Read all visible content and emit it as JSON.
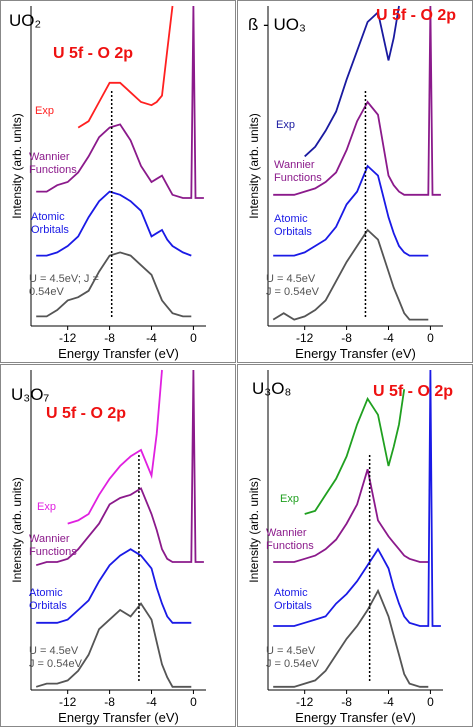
{
  "chart_data": [
    {
      "type": "line",
      "title": "UO₂",
      "annotation": "U 5f - O 2p",
      "x_label": "Energy Transfer (eV)",
      "y_label": "Intensity (arb. units)",
      "xlim": [
        -15.5,
        1.2
      ],
      "ylim": [
        0,
        10
      ],
      "xticks": [
        -12,
        -8,
        -4,
        0
      ],
      "marker_x": -7.8,
      "x": [
        -15,
        -14,
        -13,
        -12,
        -11,
        -10,
        -9,
        -8,
        -7,
        -6,
        -5,
        -4,
        -3.5,
        -3,
        -2.5,
        -2,
        -1,
        -0.2,
        0,
        0.2,
        1
      ],
      "series": [
        {
          "name": "Exp",
          "color": "#ff2020",
          "values": [
            null,
            null,
            null,
            null,
            6.2,
            6.4,
            7.0,
            7.6,
            7.6,
            7.3,
            7.0,
            6.9,
            7.0,
            7.2,
            8.6,
            10,
            null,
            null,
            null,
            null,
            null
          ]
        },
        {
          "name": "Wannier Functions",
          "color": "#8b1a8b",
          "values": [
            4.2,
            4.2,
            4.4,
            4.5,
            4.8,
            5.3,
            5.9,
            6.2,
            6.3,
            5.8,
            5.0,
            4.5,
            4.6,
            4.7,
            4.4,
            4.1,
            4.0,
            4.0,
            10,
            4.0,
            4.0
          ]
        },
        {
          "name": "Atomic Orbitals",
          "color": "#1a1ae6",
          "values": [
            2.2,
            2.2,
            2.3,
            2.5,
            2.8,
            3.4,
            3.9,
            4.2,
            4.1,
            3.9,
            3.6,
            2.8,
            2.9,
            3.0,
            2.7,
            2.5,
            2.3,
            2.2,
            null,
            null,
            null
          ]
        },
        {
          "name": "U = 4.5eV; J = 0.54eV",
          "color": "#555555",
          "values": [
            0.3,
            0.3,
            0.5,
            0.8,
            0.9,
            1.1,
            1.7,
            2.2,
            2.3,
            2.2,
            1.9,
            1.6,
            1.2,
            0.8,
            0.6,
            0.4,
            0.3,
            0.3,
            null,
            null,
            null
          ]
        }
      ]
    },
    {
      "type": "line",
      "title": "ß - UO₃",
      "annotation": "U 5f - O 2p",
      "x_label": "Energy Transfer (eV)",
      "y_label": "Intensity (arb. units)",
      "xlim": [
        -15.5,
        1.2
      ],
      "ylim": [
        0,
        10
      ],
      "xticks": [
        -12,
        -8,
        -4,
        0
      ],
      "marker_x": -6.2,
      "x": [
        -15,
        -14,
        -13,
        -12,
        -11,
        -10,
        -9,
        -8,
        -7,
        -6,
        -5,
        -4,
        -3.5,
        -3,
        -2.5,
        -2,
        -1,
        -0.2,
        0,
        0.2,
        1
      ],
      "series": [
        {
          "name": "Exp",
          "color": "#1a1aa0",
          "values": [
            null,
            null,
            null,
            5.3,
            5.6,
            6.1,
            6.7,
            7.7,
            8.6,
            9.5,
            9.8,
            8.3,
            9.0,
            10,
            null,
            null,
            null,
            null,
            null,
            null,
            null
          ]
        },
        {
          "name": "Wannier Functions",
          "color": "#8b1a8b",
          "values": [
            4.1,
            4.1,
            4.1,
            4.2,
            4.3,
            4.5,
            4.8,
            5.5,
            6.4,
            7.0,
            6.6,
            4.7,
            4.4,
            4.2,
            4.1,
            4.1,
            4.1,
            4.1,
            10,
            4.1,
            4.1
          ]
        },
        {
          "name": "Atomic Orbitals",
          "color": "#1a1ae6",
          "values": [
            2.2,
            2.2,
            2.2,
            2.3,
            2.5,
            2.7,
            3.1,
            3.8,
            4.2,
            5.0,
            4.7,
            3.4,
            2.9,
            2.5,
            2.3,
            2.2,
            2.2,
            2.2,
            null,
            null,
            null
          ]
        },
        {
          "name": "U = 4.5eV\nJ = 0.54eV",
          "color": "#555555",
          "values": [
            0.2,
            0.4,
            0.2,
            0.3,
            0.5,
            0.8,
            1.4,
            2.0,
            2.5,
            3.0,
            2.7,
            1.7,
            1.2,
            0.8,
            0.4,
            0.2,
            0.2,
            0.2,
            null,
            null,
            null
          ]
        }
      ]
    },
    {
      "type": "line",
      "title": "U₃O₇",
      "annotation": "U 5f - O 2p",
      "x_label": "Energy Transfer (eV)",
      "y_label": "Intensity (arb. units)",
      "xlim": [
        -15.5,
        1.2
      ],
      "ylim": [
        0,
        10
      ],
      "xticks": [
        -12,
        -8,
        -4,
        0
      ],
      "marker_x": -5.2,
      "x": [
        -15,
        -14,
        -13,
        -12,
        -11,
        -10,
        -9,
        -8,
        -7,
        -6,
        -5,
        -4,
        -3.5,
        -3,
        -2.5,
        -2,
        -1,
        -0.2,
        0,
        0.2,
        1
      ],
      "series": [
        {
          "name": "Exp",
          "color": "#e020e0",
          "values": [
            null,
            null,
            null,
            5.2,
            5.3,
            5.5,
            6.1,
            6.6,
            7.0,
            7.3,
            7.5,
            6.7,
            8.0,
            10,
            null,
            null,
            null,
            null,
            null,
            null,
            null
          ]
        },
        {
          "name": "Wannier Functions",
          "color": "#8b1a8b",
          "values": [
            3.9,
            4.0,
            4.0,
            4.1,
            4.4,
            4.8,
            5.2,
            5.8,
            6.0,
            6.1,
            6.3,
            5.5,
            5.0,
            4.4,
            4.1,
            4.0,
            4.0,
            4.0,
            10,
            4.0,
            4.0
          ]
        },
        {
          "name": "Atomic Orbitals",
          "color": "#1a1ae6",
          "values": [
            2.1,
            2.1,
            2.1,
            2.2,
            2.5,
            2.8,
            3.4,
            3.9,
            4.2,
            4.4,
            4.2,
            3.8,
            3.2,
            2.7,
            2.3,
            2.1,
            2.1,
            2.1,
            null,
            null,
            null
          ]
        },
        {
          "name": "U = 4.5eV\nJ = 0.54eV",
          "color": "#555555",
          "values": [
            0.1,
            0.2,
            0.2,
            0.3,
            0.6,
            1.1,
            1.9,
            2.2,
            2.5,
            2.3,
            2.7,
            2.2,
            1.5,
            0.8,
            0.4,
            0.1,
            0.1,
            0.1,
            null,
            null,
            null
          ]
        }
      ]
    },
    {
      "type": "line",
      "title": "U₃O₈",
      "annotation": "U 5f - O 2p",
      "x_label": "Energy Transfer (eV)",
      "y_label": "Intensity (arb. units)",
      "xlim": [
        -15.5,
        1.2
      ],
      "ylim": [
        0,
        10
      ],
      "xticks": [
        -12,
        -8,
        -4,
        0
      ],
      "marker_x": -5.8,
      "x": [
        -15,
        -14,
        -13,
        -12,
        -11,
        -10,
        -9,
        -8,
        -7,
        -6,
        -5,
        -4,
        -3.5,
        -3,
        -2.5,
        -2,
        -1,
        -0.2,
        0,
        0.2,
        1
      ],
      "series": [
        {
          "name": "Exp",
          "color": "#20a020",
          "values": [
            null,
            null,
            null,
            5.5,
            5.6,
            6.1,
            6.6,
            7.3,
            8.3,
            9.1,
            8.6,
            7.0,
            7.6,
            8.3,
            9.4,
            null,
            null,
            null,
            null,
            null,
            null
          ]
        },
        {
          "name": "Wannier Functions",
          "color": "#8b1a8b",
          "values": [
            4.0,
            4.0,
            4.0,
            4.1,
            4.2,
            4.4,
            4.7,
            5.2,
            5.8,
            6.9,
            5.3,
            4.8,
            4.6,
            4.4,
            4.2,
            4.1,
            4.0,
            4.0,
            null,
            null,
            null
          ]
        },
        {
          "name": "Atomic Orbitals",
          "color": "#1a1ae6",
          "values": [
            2.0,
            2.0,
            2.0,
            2.1,
            2.2,
            2.3,
            2.7,
            3.0,
            3.4,
            3.9,
            4.4,
            3.8,
            3.2,
            2.7,
            2.3,
            2.1,
            2.0,
            2.0,
            10,
            2.0,
            2.0
          ]
        },
        {
          "name": "U = 4.5eV\nJ = 0.54eV",
          "color": "#555555",
          "values": [
            0.1,
            0.1,
            0.1,
            0.2,
            0.3,
            0.6,
            1.1,
            1.6,
            2.0,
            2.5,
            3.1,
            2.3,
            1.7,
            1.1,
            0.5,
            0.2,
            0.1,
            0.1,
            null,
            null,
            null
          ]
        }
      ]
    }
  ]
}
